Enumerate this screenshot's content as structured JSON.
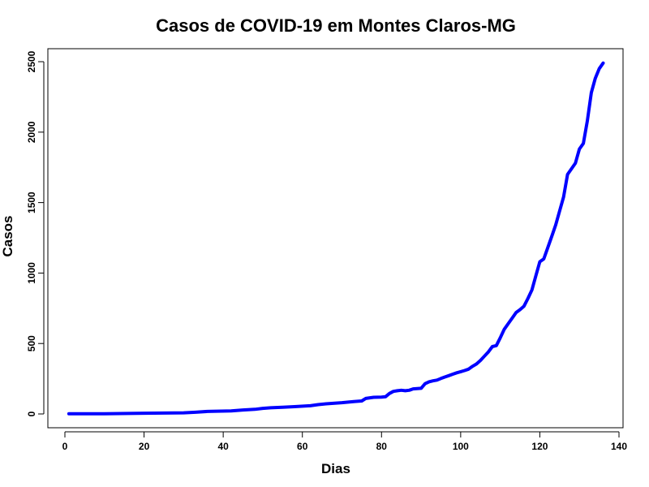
{
  "chart_data": {
    "type": "line",
    "title": "Casos de COVID-19 em Montes Claros-MG",
    "xlabel": "Dias",
    "ylabel": "Casos",
    "xlim": [
      0,
      140
    ],
    "ylim": [
      0,
      2500
    ],
    "x_ticks": [
      0,
      20,
      40,
      60,
      80,
      100,
      120,
      140
    ],
    "y_ticks": [
      0,
      500,
      1000,
      1500,
      2000,
      2500
    ],
    "grid": false,
    "series": [
      {
        "color": "#0000ff",
        "x": [
          1,
          10,
          20,
          30,
          33,
          36,
          42,
          45,
          48,
          50,
          52,
          55,
          58,
          62,
          64,
          66,
          70,
          73,
          75,
          76,
          78,
          80,
          81,
          82,
          83,
          84,
          85,
          86,
          87,
          88,
          89,
          90,
          91,
          92,
          93,
          94,
          95,
          96,
          97,
          98,
          99,
          100,
          101,
          102,
          103,
          104,
          105,
          106,
          107,
          108,
          109,
          110,
          111,
          112,
          113,
          114,
          115,
          116,
          117,
          118,
          119,
          120,
          121,
          122,
          123,
          124,
          125,
          126,
          127,
          128,
          129,
          130,
          131,
          132,
          133,
          134,
          135,
          136
        ],
        "y": [
          1,
          2,
          5,
          8,
          12,
          18,
          22,
          28,
          33,
          40,
          44,
          48,
          52,
          58,
          66,
          72,
          80,
          88,
          92,
          110,
          118,
          120,
          122,
          145,
          160,
          165,
          168,
          165,
          168,
          178,
          180,
          182,
          215,
          228,
          235,
          240,
          252,
          262,
          272,
          282,
          292,
          300,
          308,
          318,
          338,
          355,
          380,
          410,
          440,
          478,
          485,
          540,
          600,
          640,
          680,
          720,
          740,
          765,
          820,
          880,
          980,
          1080,
          1100,
          1180,
          1260,
          1340,
          1440,
          1540,
          1700,
          1740,
          1780,
          1880,
          1920,
          2080,
          2280,
          2380,
          2450,
          2490
        ]
      }
    ]
  }
}
